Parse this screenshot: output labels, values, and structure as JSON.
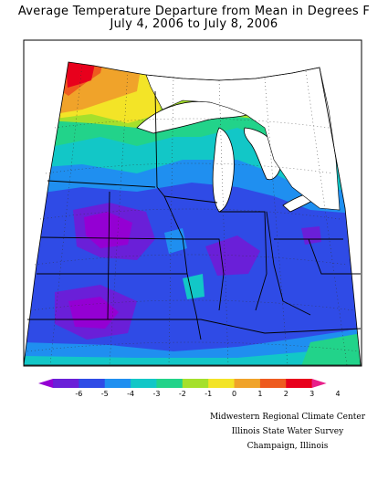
{
  "title": {
    "line1": "Average Temperature Departure from Mean in Degrees F",
    "line2": "July 4, 2006 to July 8, 2006"
  },
  "legend": {
    "ticks": [
      "-6",
      "-5",
      "-4",
      "-3",
      "-2",
      "-1",
      "0",
      "1",
      "2",
      "3",
      "4"
    ],
    "colors": [
      "#9400d3",
      "#6a1fd8",
      "#2f4be6",
      "#1f8ff0",
      "#12c7c7",
      "#22d38a",
      "#a5e02c",
      "#f3e427",
      "#f0a32a",
      "#ee5b1f",
      "#e8001c",
      "#e8208a"
    ]
  },
  "credits": [
    "Midwestern Regional Climate Center",
    "Illinois State Water Survey",
    "Champaign, Illinois"
  ]
}
